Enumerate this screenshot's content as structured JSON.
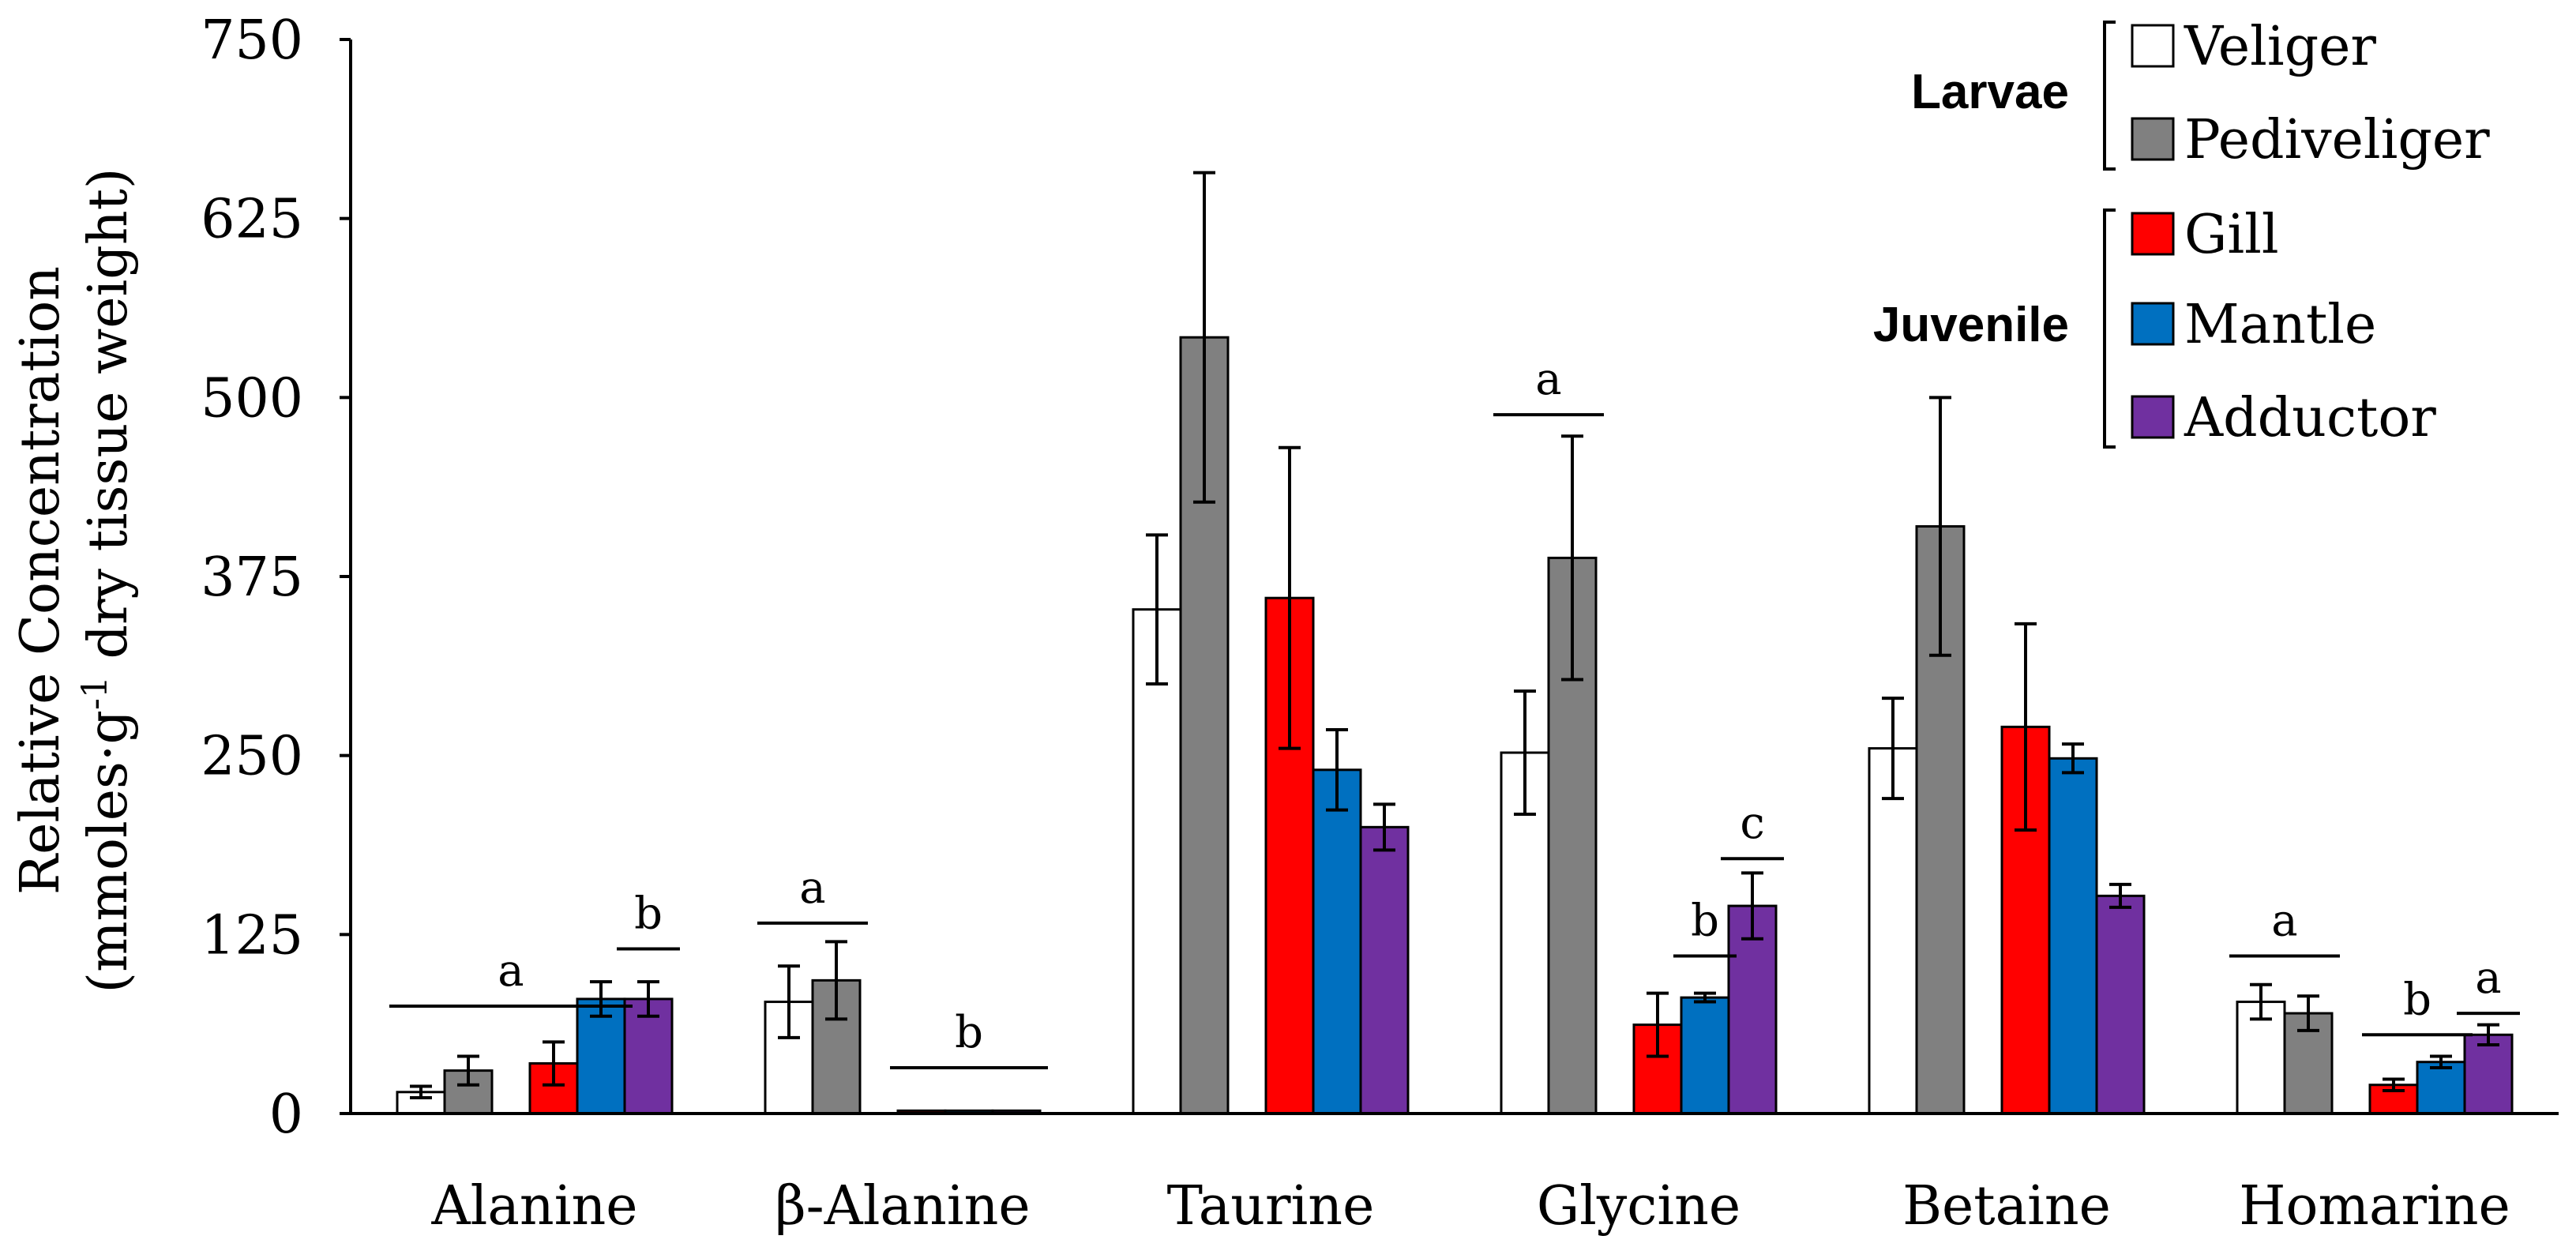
{
  "chart_data": {
    "type": "bar",
    "title": "",
    "xlabel": "",
    "ylabel_line1": "Relative Concentration",
    "ylabel_line2_prefix": "(mmoles·g",
    "ylabel_line2_sup": "-1",
    "ylabel_line2_suffix": " dry tissue weight)",
    "ylim": [
      0,
      750
    ],
    "yticks": [
      "0",
      "125",
      "250",
      "375",
      "500",
      "625",
      "750"
    ],
    "categories": [
      "Alanine",
      "β-Alanine",
      "Taurine",
      "Glycine",
      "Betaine",
      "Homarine"
    ],
    "series": [
      {
        "name": "Veliger",
        "group": "Larvae",
        "color": "#ffffff",
        "values": [
          15,
          78,
          352,
          252,
          255,
          78
        ],
        "errors": [
          4,
          25,
          52,
          43,
          35,
          12
        ]
      },
      {
        "name": "Pediveliger",
        "group": "Larvae",
        "color": "#808080",
        "values": [
          30,
          93,
          542,
          388,
          410,
          70
        ],
        "errors": [
          10,
          27,
          115,
          85,
          90,
          12
        ]
      },
      {
        "name": "Gill",
        "group": "Juvenile",
        "color": "#ff0000",
        "values": [
          35,
          2,
          360,
          62,
          270,
          20
        ],
        "errors": [
          15,
          0,
          105,
          22,
          72,
          4
        ]
      },
      {
        "name": "Mantle",
        "group": "Juvenile",
        "color": "#0070c0",
        "values": [
          80,
          2,
          240,
          81,
          248,
          36
        ],
        "errors": [
          12,
          0,
          28,
          3,
          10,
          4
        ]
      },
      {
        "name": "Adductor",
        "group": "Juvenile",
        "color": "#7030a0",
        "values": [
          80,
          2,
          200,
          145,
          152,
          55
        ],
        "errors": [
          12,
          0,
          16,
          23,
          8,
          7
        ]
      }
    ],
    "significance": [
      {
        "category": "Alanine",
        "label": "a",
        "from_series": 0,
        "to_series": 3,
        "level": 75
      },
      {
        "category": "Alanine",
        "label": "b",
        "from_series": 4,
        "to_series": 4,
        "level": 115
      },
      {
        "category": "β-Alanine",
        "label": "a",
        "from_series": 0,
        "to_series": 1,
        "level": 133
      },
      {
        "category": "β-Alanine",
        "label": "b",
        "from_series": 2,
        "to_series": 4,
        "level": 32
      },
      {
        "category": "Glycine",
        "label": "a",
        "from_series": 0,
        "to_series": 1,
        "level": 488
      },
      {
        "category": "Glycine",
        "label": "b",
        "from_series": 3,
        "to_series": 3,
        "level": 110
      },
      {
        "category": "Glycine",
        "label": "c",
        "from_series": 4,
        "to_series": 4,
        "level": 178
      },
      {
        "category": "Homarine",
        "label": "a",
        "from_series": 0,
        "to_series": 1,
        "level": 110
      },
      {
        "category": "Homarine",
        "label": "b",
        "from_series": 2,
        "to_series": 3,
        "level": 55
      },
      {
        "category": "Homarine",
        "label": "a",
        "from_series": 4,
        "to_series": 4,
        "level": 70
      }
    ],
    "legend": {
      "position": "top-right",
      "groups": [
        {
          "label": "Larvae",
          "series": [
            "Veliger",
            "Pediveliger"
          ]
        },
        {
          "label": "Juvenile",
          "series": [
            "Gill",
            "Mantle",
            "Adductor"
          ]
        }
      ]
    }
  }
}
